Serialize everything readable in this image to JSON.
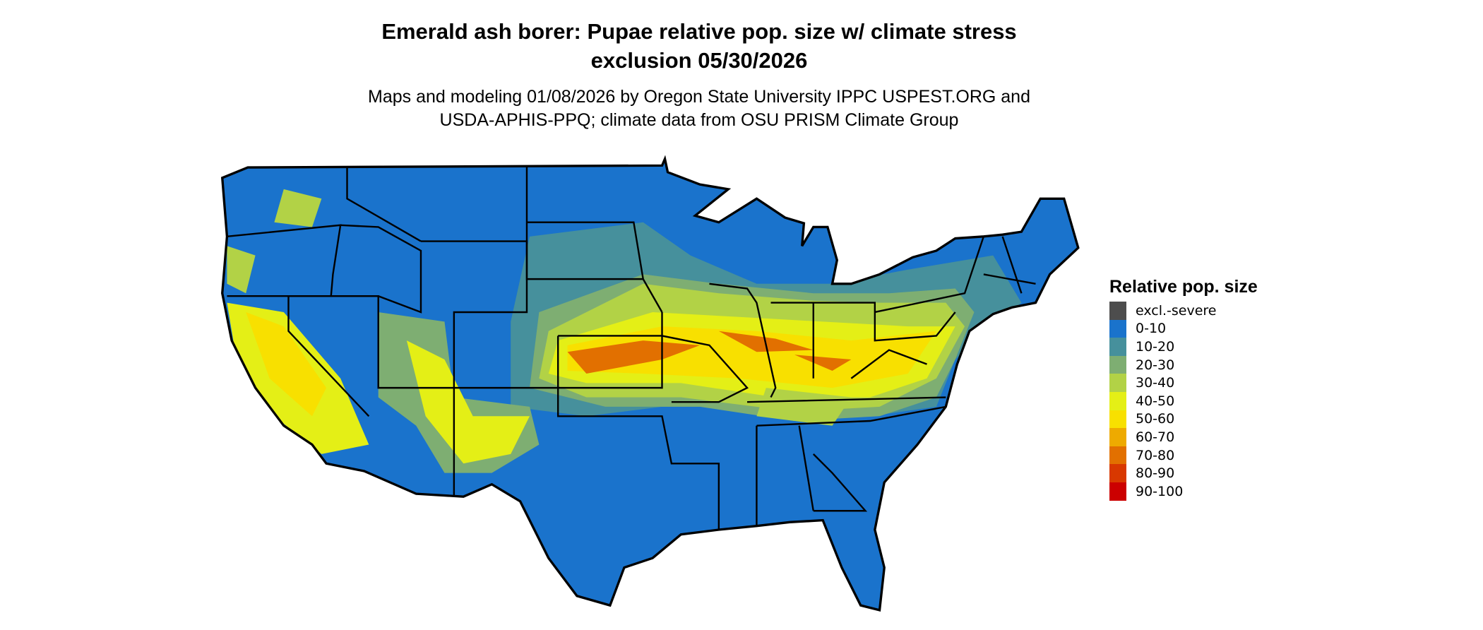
{
  "title": {
    "line1": "Emerald ash borer: Pupae relative pop. size w/ climate stress",
    "line2": "exclusion 05/30/2026"
  },
  "subtitle": {
    "line1": "Maps and modeling 01/08/2026 by Oregon State University IPPC USPEST.ORG and",
    "line2": "USDA-APHIS-PPQ; climate data from OSU PRISM Climate Group"
  },
  "legend": {
    "title": "Relative pop. size",
    "items": [
      {
        "label": "excl.-severe",
        "color": "#4d4d4d"
      },
      {
        "label": "0-10",
        "color": "#1a73cc"
      },
      {
        "label": "10-20",
        "color": "#46909c"
      },
      {
        "label": "20-30",
        "color": "#7eae72"
      },
      {
        "label": "30-40",
        "color": "#b2d246"
      },
      {
        "label": "40-50",
        "color": "#e4ef16"
      },
      {
        "label": "50-60",
        "color": "#f8e000"
      },
      {
        "label": "60-70",
        "color": "#eeaa00"
      },
      {
        "label": "70-80",
        "color": "#e27000"
      },
      {
        "label": "80-90",
        "color": "#d83800"
      },
      {
        "label": "90-100",
        "color": "#cc0000"
      }
    ]
  }
}
